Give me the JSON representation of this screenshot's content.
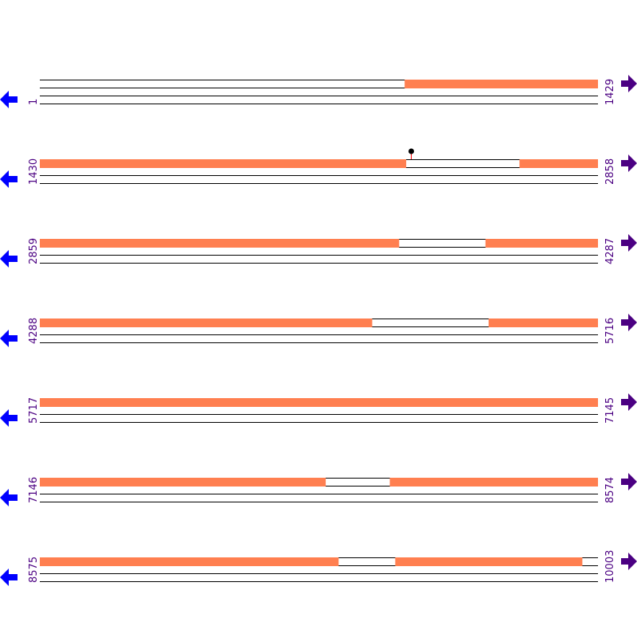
{
  "map": {
    "bp_per_row": 1429,
    "colors": {
      "feature": "#ff7f50",
      "line": "#000000",
      "label": "#4b0082",
      "left_arrow": "#0000ff",
      "right_arrow": "#4b0082",
      "marker_stem": "#ff0000",
      "marker_head": "#000000"
    },
    "left_arrow_icon": "arrow-left-icon",
    "right_arrow_icon": "arrow-right-icon",
    "rows": [
      {
        "start": "1",
        "end": "1429",
        "features": [
          [
            935,
            1429
          ]
        ]
      },
      {
        "start": "1430",
        "end": "2858",
        "features": [
          [
            1430,
            2368
          ],
          [
            2658,
            2858
          ]
        ],
        "markers": [
          2381
        ]
      },
      {
        "start": "2859",
        "end": "4287",
        "features": [
          [
            2859,
            3779
          ],
          [
            4000,
            4287
          ]
        ]
      },
      {
        "start": "4288",
        "end": "5716",
        "features": [
          [
            4288,
            5139
          ],
          [
            5437,
            5716
          ]
        ]
      },
      {
        "start": "5717",
        "end": "7145",
        "features": [
          [
            5717,
            7145
          ]
        ]
      },
      {
        "start": "7146",
        "end": "8574",
        "features": [
          [
            7146,
            7878
          ],
          [
            8042,
            8574
          ]
        ]
      },
      {
        "start": "8575",
        "end": "10003",
        "features": [
          [
            8575,
            9340
          ],
          [
            9485,
            9964
          ]
        ]
      }
    ]
  }
}
